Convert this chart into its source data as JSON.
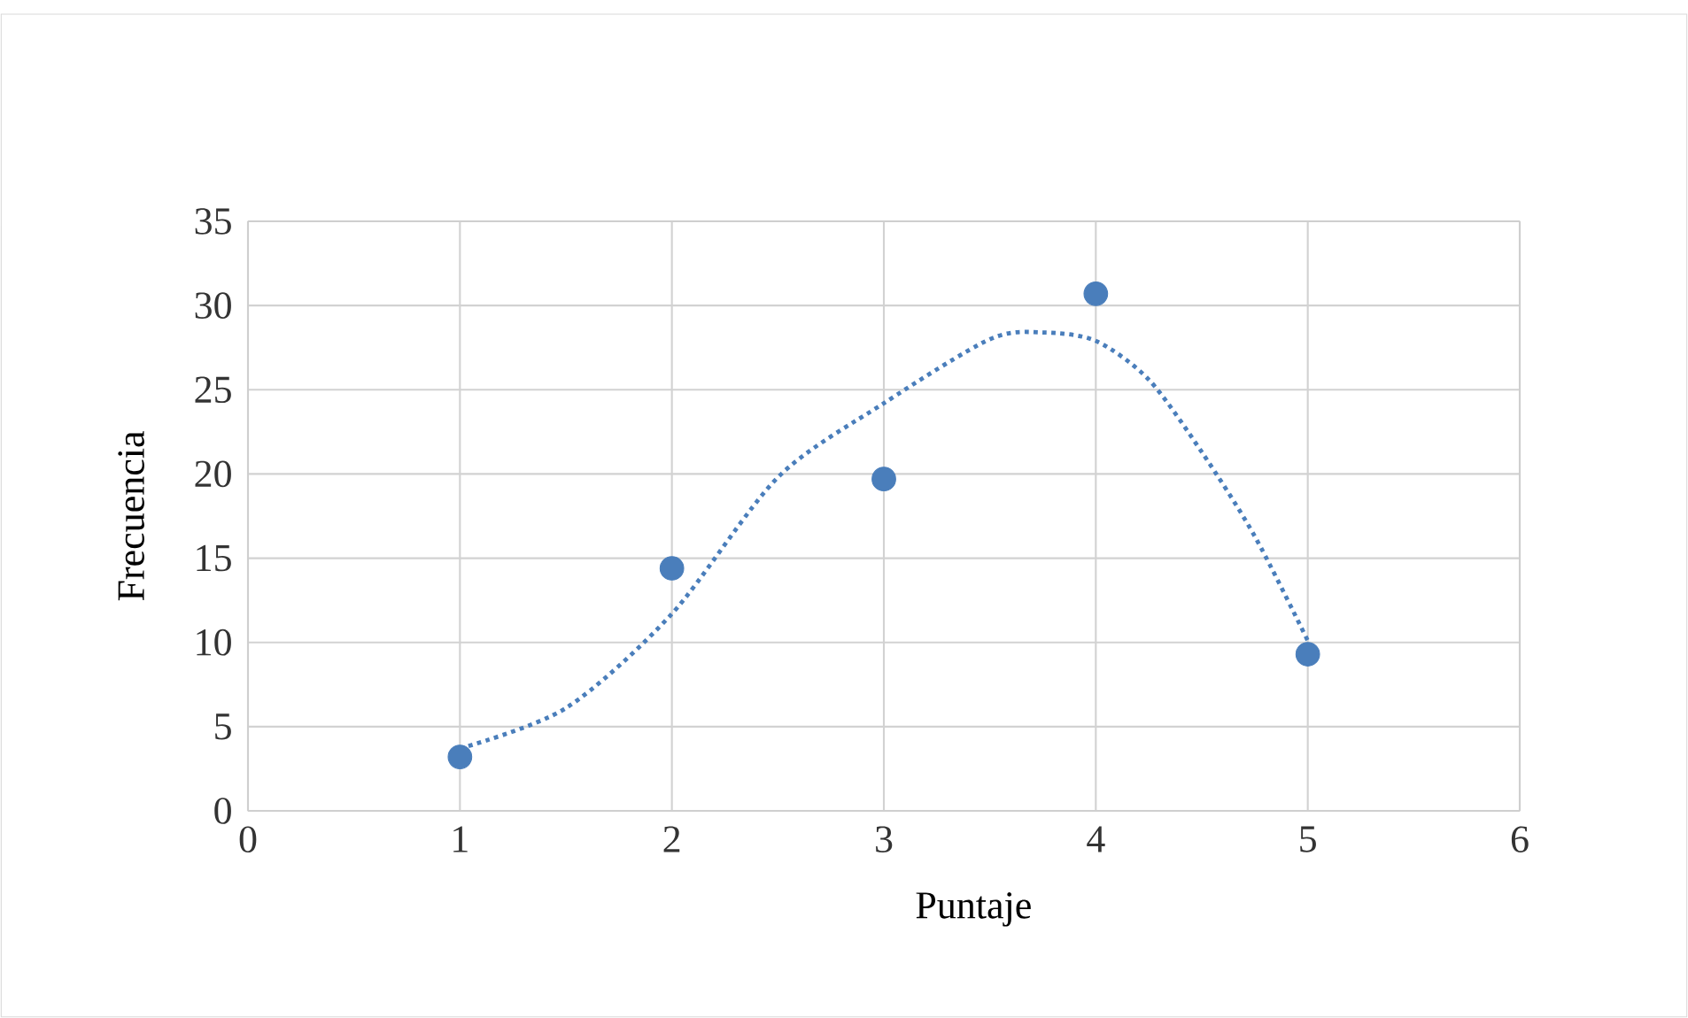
{
  "chart_data": {
    "type": "scatter",
    "xlabel": "Puntaje",
    "ylabel": "Frecuencia",
    "xlim": [
      0,
      6
    ],
    "xticks": [
      0,
      1,
      2,
      3,
      4,
      5,
      6
    ],
    "ylim": [
      0,
      35
    ],
    "yticks": [
      0,
      5,
      10,
      15,
      20,
      25,
      30,
      35
    ],
    "grid": true,
    "series": [
      {
        "type": "scatter",
        "marker": "circle",
        "color": "#4a7ebb",
        "x": [
          1,
          2,
          3,
          4,
          5
        ],
        "values": [
          3.2,
          14.4,
          19.7,
          30.7,
          9.3
        ]
      },
      {
        "type": "line",
        "color": "#4a7ebb",
        "line_style": "dotted",
        "marker": "none",
        "x": [
          1,
          1.5,
          2,
          2.5,
          3,
          3.5,
          3.75,
          4,
          4.25,
          4.5,
          4.75,
          5
        ],
        "values": [
          3.7,
          6.1,
          11.7,
          19.8,
          24.2,
          28.0,
          28.4,
          27.9,
          25.6,
          21.3,
          16.3,
          10.1
        ]
      }
    ]
  }
}
